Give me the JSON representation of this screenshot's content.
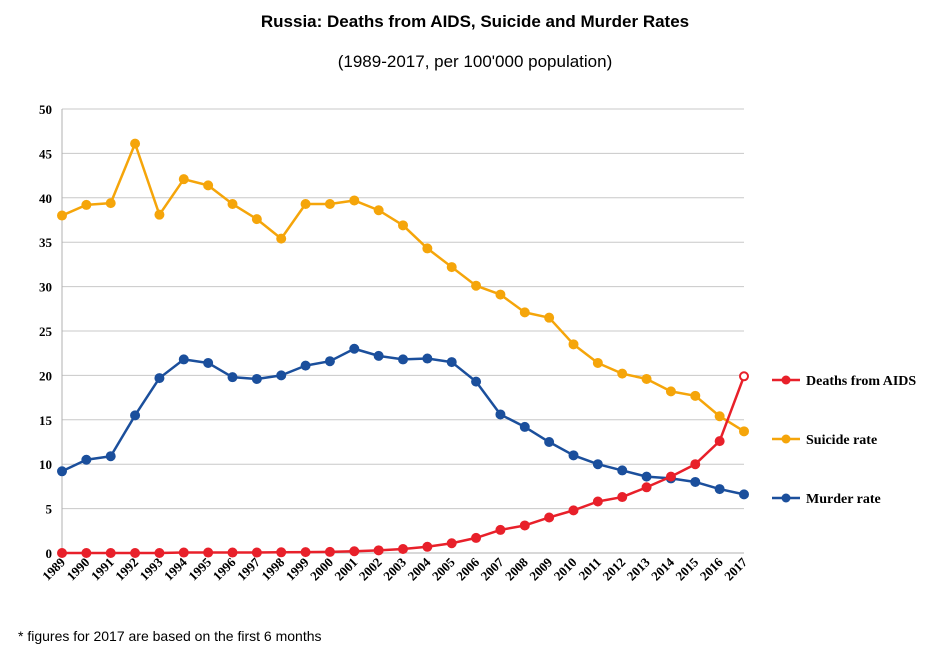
{
  "title": "Russia: Deaths from AIDS, Suicide and Murder Rates",
  "subtitle": "(1989-2017, per 100'000 population)",
  "footnote": "* figures for 2017 are based on the first 6 months",
  "chart_data": {
    "type": "line",
    "title": "Russia: Deaths from AIDS, Suicide and Murder Rates",
    "subtitle": "(1989-2017, per 100'000 population)",
    "xlabel": "",
    "ylabel": "",
    "x": [
      "1989",
      "1990",
      "1991",
      "1992",
      "1993",
      "1994",
      "1995",
      "1996",
      "1997",
      "1998",
      "1999",
      "2000",
      "2001",
      "2002",
      "2003",
      "2004",
      "2005",
      "2006",
      "2007",
      "2008",
      "2009",
      "2010",
      "2011",
      "2012",
      "2013",
      "2014",
      "2015",
      "2016",
      "2017"
    ],
    "ylim": [
      0,
      50
    ],
    "yticks": [
      0,
      5,
      10,
      15,
      20,
      25,
      30,
      35,
      40,
      45,
      50
    ],
    "grid": true,
    "legend": "right",
    "series": [
      {
        "name": "Deaths from AIDS",
        "color": "#e8202a",
        "values": [
          0,
          0,
          0,
          0,
          0,
          0.05,
          0.05,
          0.05,
          0.05,
          0.08,
          0.1,
          0.12,
          0.2,
          0.3,
          0.45,
          0.7,
          1.1,
          1.7,
          2.6,
          3.1,
          4.0,
          4.8,
          5.8,
          6.3,
          7.4,
          8.6,
          10.0,
          12.6,
          19.9
        ]
      },
      {
        "name": "Suicide rate",
        "color": "#f5a50a",
        "values": [
          38.0,
          39.2,
          39.4,
          46.1,
          38.1,
          42.1,
          41.4,
          39.3,
          37.6,
          35.4,
          39.3,
          39.3,
          39.7,
          38.6,
          36.9,
          34.3,
          32.2,
          30.1,
          29.1,
          27.1,
          26.5,
          23.5,
          21.4,
          20.2,
          19.6,
          18.2,
          17.7,
          15.4,
          13.7
        ]
      },
      {
        "name": "Murder rate",
        "color": "#1b4f9c",
        "values": [
          9.2,
          10.5,
          10.9,
          15.5,
          19.7,
          21.8,
          21.4,
          19.8,
          19.6,
          20.0,
          21.1,
          21.6,
          23.0,
          22.2,
          21.8,
          21.9,
          21.5,
          19.3,
          15.6,
          14.2,
          12.5,
          11.0,
          10.0,
          9.3,
          8.6,
          8.4,
          8.0,
          7.2,
          6.6
        ]
      }
    ]
  }
}
